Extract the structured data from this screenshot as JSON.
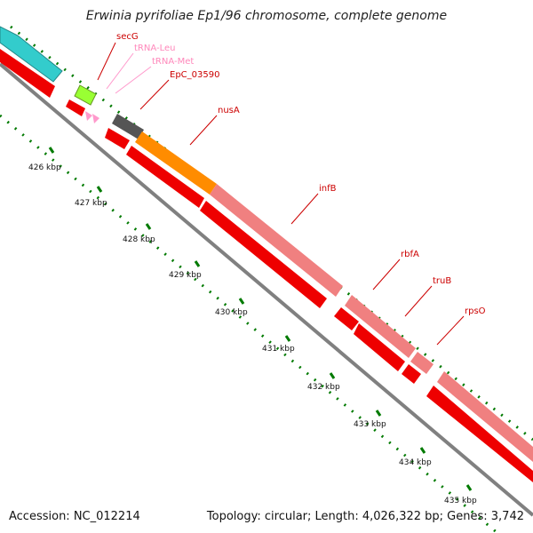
{
  "title": "Erwinia pyrifoliae Ep1/96 chromosome, complete genome",
  "footer": {
    "accession": "Accession: NC_012214",
    "summary": "Topology: circular; Length: 4,026,322 bp; Genes: 3,742"
  },
  "colors": {
    "cds": "#ff0000",
    "rrna_teal": "#33cccc",
    "secG": "#99ff33",
    "trna": "#ff99cc",
    "nusA_block": "#ff8c00",
    "infB_block": "#f08080",
    "dark_block": "#555555",
    "backbone": "#777777",
    "ticks": "#007a00"
  },
  "features": [
    {
      "name": "secG",
      "color": "#cc0000"
    },
    {
      "name": "tRNA-Leu",
      "color": "#ff99cc"
    },
    {
      "name": "tRNA-Met",
      "color": "#ff99cc"
    },
    {
      "name": "EpC_03590",
      "color": "#cc0000"
    },
    {
      "name": "nusA",
      "color": "#cc0000"
    },
    {
      "name": "infB",
      "color": "#cc0000"
    },
    {
      "name": "rbfA",
      "color": "#cc0000"
    },
    {
      "name": "truB",
      "color": "#cc0000"
    },
    {
      "name": "rpsO",
      "color": "#cc0000"
    }
  ],
  "ticks": [
    "426 kbp",
    "427 kbp",
    "428 kbp",
    "429 kbp",
    "430 kbp",
    "431 kbp",
    "432 kbp",
    "433 kbp",
    "434 kbp",
    "435 kbp"
  ]
}
